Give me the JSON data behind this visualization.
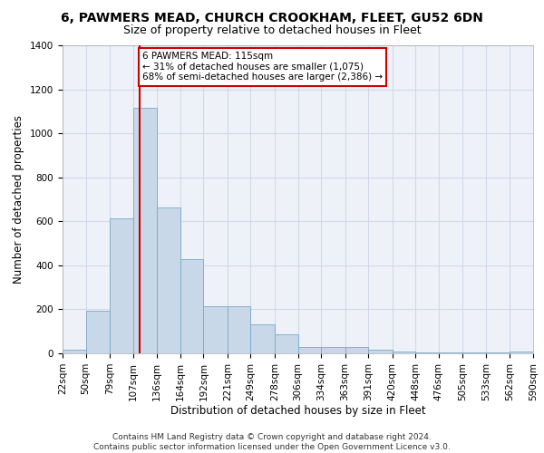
{
  "title1": "6, PAWMERS MEAD, CHURCH CROOKHAM, FLEET, GU52 6DN",
  "title2": "Size of property relative to detached houses in Fleet",
  "xlabel": "Distribution of detached houses by size in Fleet",
  "ylabel": "Number of detached properties",
  "footnote1": "Contains HM Land Registry data © Crown copyright and database right 2024.",
  "footnote2": "Contains public sector information licensed under the Open Government Licence v3.0.",
  "annotation_line1": "6 PAWMERS MEAD: 115sqm",
  "annotation_line2": "← 31% of detached houses are smaller (1,075)",
  "annotation_line3": "68% of semi-detached houses are larger (2,386) →",
  "property_size": 115,
  "bar_left_edges": [
    22,
    50,
    79,
    107,
    136,
    164,
    192,
    221,
    249,
    278,
    306,
    334,
    363,
    391,
    420,
    448,
    476,
    505,
    533,
    562
  ],
  "bar_widths": [
    28,
    29,
    28,
    29,
    28,
    28,
    29,
    28,
    29,
    28,
    28,
    29,
    28,
    29,
    28,
    28,
    29,
    28,
    29,
    28
  ],
  "bar_heights": [
    15,
    195,
    615,
    1115,
    665,
    430,
    215,
    215,
    130,
    85,
    30,
    28,
    28,
    15,
    10,
    5,
    5,
    5,
    5,
    8
  ],
  "bar_color_face": "#c8d8e8",
  "bar_color_edge": "#7aa8c8",
  "vline_color": "#cc0000",
  "vline_x": 115,
  "ylim": [
    0,
    1400
  ],
  "yticks": [
    0,
    200,
    400,
    600,
    800,
    1000,
    1200,
    1400
  ],
  "xtick_labels": [
    "22sqm",
    "50sqm",
    "79sqm",
    "107sqm",
    "136sqm",
    "164sqm",
    "192sqm",
    "221sqm",
    "249sqm",
    "278sqm",
    "306sqm",
    "334sqm",
    "363sqm",
    "391sqm",
    "420sqm",
    "448sqm",
    "476sqm",
    "505sqm",
    "533sqm",
    "562sqm",
    "590sqm"
  ],
  "xtick_positions": [
    22,
    50,
    79,
    107,
    136,
    164,
    192,
    221,
    249,
    278,
    306,
    334,
    363,
    391,
    420,
    448,
    476,
    505,
    533,
    562,
    590
  ],
  "grid_color": "#d0d8e8",
  "background_color": "#eef2f8",
  "title1_fontsize": 10,
  "title2_fontsize": 9,
  "axis_label_fontsize": 8.5,
  "tick_fontsize": 7.5,
  "footnote_fontsize": 6.5,
  "annot_fontsize": 7.5
}
